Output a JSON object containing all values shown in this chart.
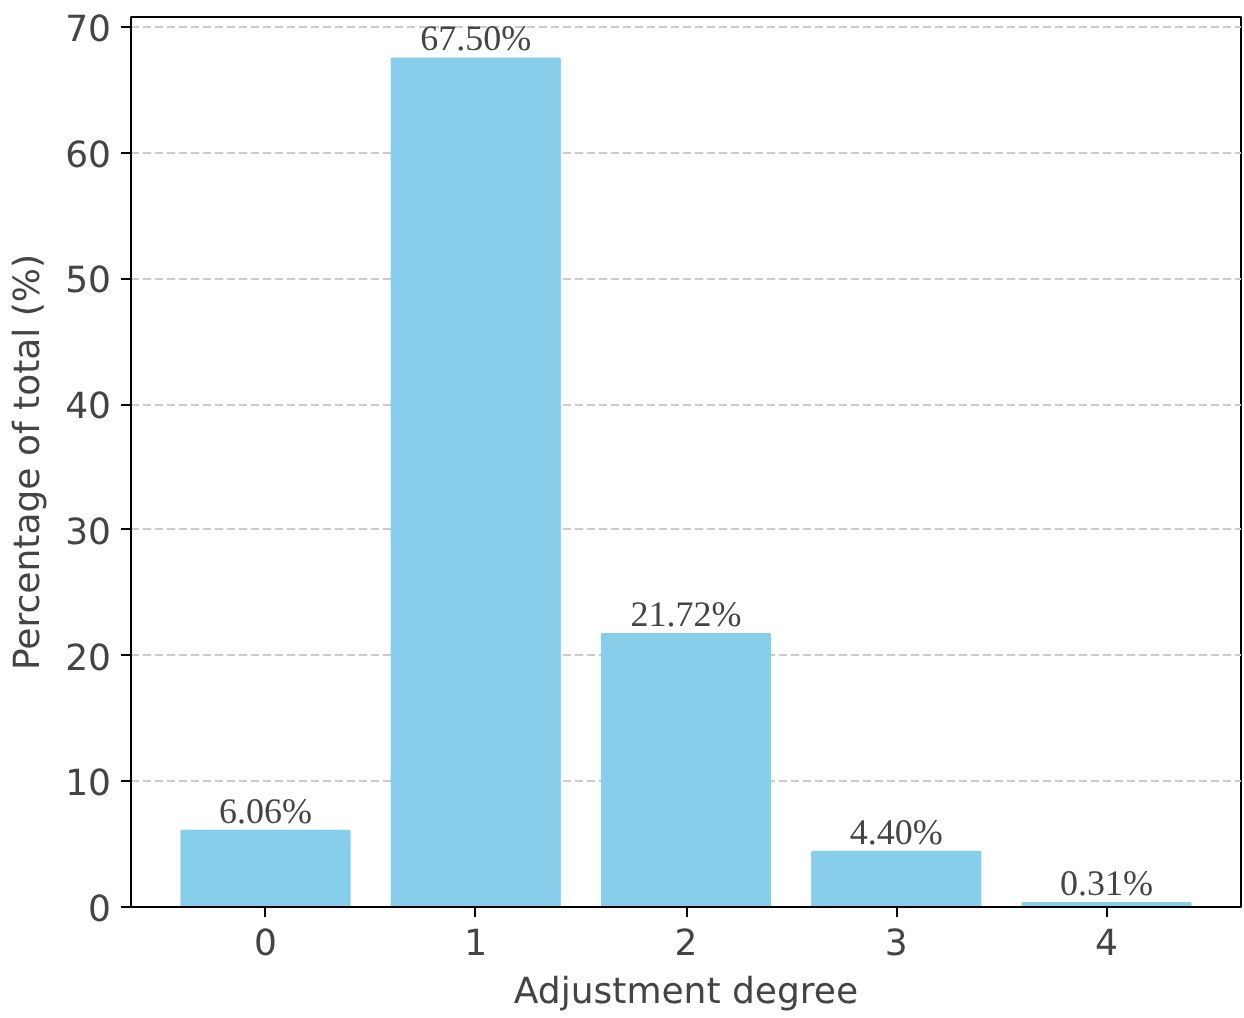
{
  "chart_data": {
    "type": "bar",
    "xlabel": "Adjustment degree",
    "ylabel": "Percentage of total (%)",
    "categories": [
      "0",
      "1",
      "2",
      "3",
      "4"
    ],
    "values": [
      6.06,
      67.5,
      21.72,
      4.4,
      0.31
    ],
    "value_labels": [
      "6.06%",
      "67.50%",
      "21.72%",
      "4.40%",
      "0.31%"
    ],
    "color": "#87ceeb",
    "ylim": [
      0,
      70.8
    ],
    "yticks": [
      0,
      10,
      20,
      30,
      40,
      50,
      60,
      70
    ],
    "grid": "y"
  }
}
